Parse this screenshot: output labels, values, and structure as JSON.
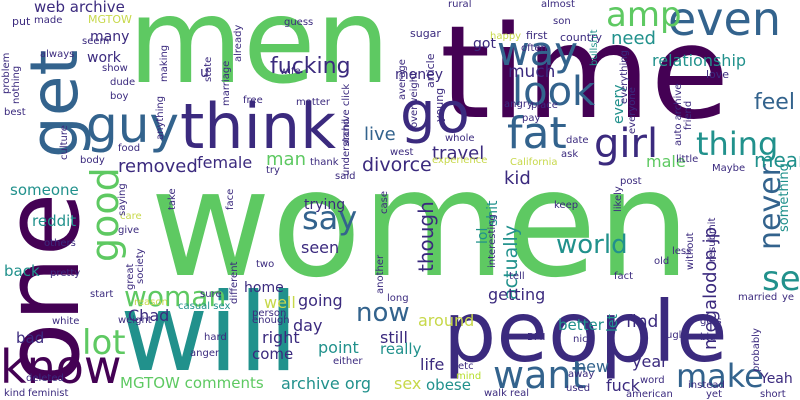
{
  "palette": {
    "dark_purple": "#440154",
    "indigo": "#3b2a7e",
    "blue": "#33638d",
    "teal": "#21918c",
    "green": "#5ec962",
    "yellow_green": "#b5de2b",
    "yellow": "#c7d84a"
  },
  "words": [
    {
      "text": "women",
      "color": "#5ec962"
    },
    {
      "text": "time",
      "color": "#440154"
    },
    {
      "text": "men",
      "color": "#5ec962"
    },
    {
      "text": "one",
      "color": "#440154"
    },
    {
      "text": "will",
      "color": "#21918c"
    },
    {
      "text": "people",
      "color": "#3b2a7e"
    },
    {
      "text": "think",
      "color": "#3b2a7e"
    },
    {
      "text": "get",
      "color": "#33638d"
    },
    {
      "text": "guy",
      "color": "#33638d"
    },
    {
      "text": "go",
      "color": "#3b2a7e"
    },
    {
      "text": "know",
      "color": "#440154"
    },
    {
      "text": "good",
      "color": "#5ec962"
    },
    {
      "text": "even",
      "color": "#33638d"
    },
    {
      "text": "amp",
      "color": "#5ec962"
    },
    {
      "text": "way",
      "color": "#33638d"
    },
    {
      "text": "look",
      "color": "#33638d"
    },
    {
      "text": "fat",
      "color": "#33638d"
    },
    {
      "text": "girl",
      "color": "#3b2a7e"
    },
    {
      "text": "thing",
      "color": "#21918c"
    },
    {
      "text": "see",
      "color": "#21918c"
    },
    {
      "text": "want",
      "color": "#33638d"
    },
    {
      "text": "make",
      "color": "#33638d"
    },
    {
      "text": "say",
      "color": "#33638d"
    },
    {
      "text": "never",
      "color": "#33638d"
    },
    {
      "text": "lot",
      "color": "#5ec962"
    },
    {
      "text": "woman",
      "color": "#5ec962"
    },
    {
      "text": "world",
      "color": "#21918c"
    },
    {
      "text": "now",
      "color": "#33638d"
    },
    {
      "text": "fucking",
      "color": "#3b2a7e"
    },
    {
      "text": "relationship",
      "color": "#21918c"
    },
    {
      "text": "need",
      "color": "#21918c"
    },
    {
      "text": "much",
      "color": "#3b2a7e"
    },
    {
      "text": "feel",
      "color": "#33638d"
    },
    {
      "text": "mean",
      "color": "#21918c"
    },
    {
      "text": "though",
      "color": "#3b2a7e"
    },
    {
      "text": "actually",
      "color": "#21918c"
    },
    {
      "text": "megalodon jp",
      "color": "#3b2a7e"
    },
    {
      "text": "removed",
      "color": "#3b2a7e"
    },
    {
      "text": "female",
      "color": "#3b2a7e"
    },
    {
      "text": "man",
      "color": "#5ec962"
    },
    {
      "text": "divorce",
      "color": "#3b2a7e"
    },
    {
      "text": "live",
      "color": "#33638d"
    },
    {
      "text": "travel",
      "color": "#3b2a7e"
    },
    {
      "text": "kid",
      "color": "#3b2a7e"
    },
    {
      "text": "male",
      "color": "#5ec962"
    },
    {
      "text": "going",
      "color": "#3b2a7e"
    },
    {
      "text": "getting",
      "color": "#3b2a7e"
    },
    {
      "text": "around",
      "color": "#c7d84a"
    },
    {
      "text": "better",
      "color": "#21918c"
    },
    {
      "text": "find",
      "color": "#3b2a7e"
    },
    {
      "text": "seen",
      "color": "#3b2a7e"
    },
    {
      "text": "trying",
      "color": "#3b2a7e"
    },
    {
      "text": "day",
      "color": "#3b2a7e"
    },
    {
      "text": "point",
      "color": "#21918c"
    },
    {
      "text": "still",
      "color": "#3b2a7e"
    },
    {
      "text": "really",
      "color": "#21918c"
    },
    {
      "text": "life",
      "color": "#3b2a7e"
    },
    {
      "text": "sex",
      "color": "#c7d84a"
    },
    {
      "text": "obese",
      "color": "#21918c"
    },
    {
      "text": "new",
      "color": "#33638d"
    },
    {
      "text": "year",
      "color": "#3b2a7e"
    },
    {
      "text": "fuck",
      "color": "#3b2a7e"
    },
    {
      "text": "Yeah",
      "color": "#3b2a7e"
    },
    {
      "text": "archive org",
      "color": "#21918c"
    },
    {
      "text": "MGTOW comments",
      "color": "#5ec962"
    },
    {
      "text": "come",
      "color": "#3b2a7e"
    },
    {
      "text": "right",
      "color": "#3b2a7e"
    },
    {
      "text": "home",
      "color": "#3b2a7e"
    },
    {
      "text": "well",
      "color": "#c7d84a"
    },
    {
      "text": "Chad",
      "color": "#3b2a7e"
    },
    {
      "text": "bad",
      "color": "#3b2a7e"
    },
    {
      "text": "back",
      "color": "#21918c"
    },
    {
      "text": "reddit",
      "color": "#21918c"
    },
    {
      "text": "someone",
      "color": "#21918c"
    },
    {
      "text": "web archive",
      "color": "#3b2a7e"
    },
    {
      "text": "work",
      "color": "#3b2a7e"
    },
    {
      "text": "many",
      "color": "#3b2a7e"
    },
    {
      "text": "money",
      "color": "#3b2a7e"
    },
    {
      "text": "got",
      "color": "#3b2a7e"
    },
    {
      "text": "lol",
      "color": "#21918c"
    },
    {
      "text": "shit",
      "color": "#21918c"
    },
    {
      "text": "let",
      "color": "#21918c"
    },
    {
      "text": "every",
      "color": "#21918c"
    },
    {
      "text": "something",
      "color": "#21918c"
    },
    {
      "text": "MGTOW",
      "color": "#c7d84a"
    },
    {
      "text": "put",
      "color": "#3b2a7e"
    },
    {
      "text": "made",
      "color": "#3b2a7e"
    },
    {
      "text": "always",
      "color": "#3b2a7e"
    },
    {
      "text": "guess",
      "color": "#3b2a7e"
    },
    {
      "text": "rural",
      "color": "#3b2a7e"
    },
    {
      "text": "son",
      "color": "#3b2a7e"
    },
    {
      "text": "almost",
      "color": "#3b2a7e"
    },
    {
      "text": "bullshit",
      "color": "#21918c"
    },
    {
      "text": "country",
      "color": "#3b2a7e"
    },
    {
      "text": "first",
      "color": "#3b2a7e"
    },
    {
      "text": "sugar",
      "color": "#3b2a7e"
    },
    {
      "text": "love",
      "color": "#3b2a7e"
    },
    {
      "text": "casual sex",
      "color": "#21918c"
    },
    {
      "text": "person",
      "color": "#3b2a7e"
    },
    {
      "text": "enough",
      "color": "#3b2a7e"
    },
    {
      "text": "long",
      "color": "#3b2a7e"
    },
    {
      "text": "keep",
      "color": "#3b2a7e"
    },
    {
      "text": "post",
      "color": "#3b2a7e"
    },
    {
      "text": "said",
      "color": "#3b2a7e"
    },
    {
      "text": "tell",
      "color": "#3b2a7e"
    },
    {
      "text": "feminist",
      "color": "#3b2a7e"
    },
    {
      "text": "walk real",
      "color": "#3b2a7e"
    },
    {
      "text": "american",
      "color": "#3b2a7e"
    },
    {
      "text": "word",
      "color": "#3b2a7e"
    },
    {
      "text": "short",
      "color": "#3b2a7e"
    },
    {
      "text": "yet",
      "color": "#3b2a7e"
    },
    {
      "text": "big",
      "color": "#3b2a7e"
    },
    {
      "text": "fact",
      "color": "#3b2a7e"
    },
    {
      "text": "deleted",
      "color": "#3b2a7e"
    },
    {
      "text": "white",
      "color": "#3b2a7e"
    },
    {
      "text": "weight",
      "color": "#3b2a7e"
    },
    {
      "text": "hard",
      "color": "#3b2a7e"
    },
    {
      "text": "anger",
      "color": "#3b2a7e"
    },
    {
      "text": "either",
      "color": "#3b2a7e"
    },
    {
      "text": "two",
      "color": "#3b2a7e"
    },
    {
      "text": "sure",
      "color": "#3b2a7e"
    },
    {
      "text": "others",
      "color": "#3b2a7e"
    },
    {
      "text": "pretty",
      "color": "#3b2a7e"
    },
    {
      "text": "start",
      "color": "#3b2a7e"
    },
    {
      "text": "kind",
      "color": "#3b2a7e"
    },
    {
      "text": "face",
      "color": "#3b2a7e"
    },
    {
      "text": "take",
      "color": "#3b2a7e"
    },
    {
      "text": "try",
      "color": "#3b2a7e"
    },
    {
      "text": "thank",
      "color": "#3b2a7e"
    },
    {
      "text": "matter",
      "color": "#3b2a7e"
    },
    {
      "text": "free",
      "color": "#3b2a7e"
    },
    {
      "text": "wife",
      "color": "#3b2a7e"
    },
    {
      "text": "west",
      "color": "#3b2a7e"
    },
    {
      "text": "ask",
      "color": "#3b2a7e"
    },
    {
      "text": "experience",
      "color": "#c7d84a"
    },
    {
      "text": "California",
      "color": "#c7d84a"
    },
    {
      "text": "whole",
      "color": "#3b2a7e"
    },
    {
      "text": "place",
      "color": "#3b2a7e"
    },
    {
      "text": "date",
      "color": "#3b2a7e"
    },
    {
      "text": "pay",
      "color": "#3b2a7e"
    },
    {
      "text": "little",
      "color": "#3b2a7e"
    },
    {
      "text": "Maybe",
      "color": "#3b2a7e"
    },
    {
      "text": "likely",
      "color": "#3b2a7e"
    },
    {
      "text": "old",
      "color": "#3b2a7e"
    },
    {
      "text": "less",
      "color": "#3b2a7e"
    },
    {
      "text": "without",
      "color": "#3b2a7e"
    },
    {
      "text": "resubmit",
      "color": "#3b2a7e"
    },
    {
      "text": "married",
      "color": "#3b2a7e"
    },
    {
      "text": "gets",
      "color": "#3b2a7e"
    },
    {
      "text": "ugly",
      "color": "#3b2a7e"
    },
    {
      "text": "nice",
      "color": "#3b2a7e"
    },
    {
      "text": "away",
      "color": "#3b2a7e"
    },
    {
      "text": "etc",
      "color": "#3b2a7e"
    },
    {
      "text": "BMI",
      "color": "#3b2a7e"
    },
    {
      "text": "used",
      "color": "#3b2a7e"
    },
    {
      "text": "instead",
      "color": "#3b2a7e"
    },
    {
      "text": "probably",
      "color": "#3b2a7e"
    },
    {
      "text": "ye",
      "color": "#3b2a7e"
    },
    {
      "text": "mind",
      "color": "#b5de2b"
    },
    {
      "text": "different",
      "color": "#3b2a7e"
    },
    {
      "text": "great",
      "color": "#3b2a7e"
    },
    {
      "text": "give",
      "color": "#3b2a7e"
    },
    {
      "text": "care",
      "color": "#c7d84a"
    },
    {
      "text": "saying",
      "color": "#3b2a7e"
    },
    {
      "text": "food",
      "color": "#3b2a7e"
    },
    {
      "text": "body",
      "color": "#3b2a7e"
    },
    {
      "text": "culture",
      "color": "#3b2a7e"
    },
    {
      "text": "best",
      "color": "#3b2a7e"
    },
    {
      "text": "nothing",
      "color": "#3b2a7e"
    },
    {
      "text": "problem",
      "color": "#3b2a7e"
    },
    {
      "text": "seem",
      "color": "#3b2a7e"
    },
    {
      "text": "dude",
      "color": "#3b2a7e"
    },
    {
      "text": "boy",
      "color": "#3b2a7e"
    },
    {
      "text": "show",
      "color": "#3b2a7e"
    },
    {
      "text": "anything",
      "color": "#3b2a7e"
    },
    {
      "text": "making",
      "color": "#3b2a7e"
    },
    {
      "text": "u",
      "color": "#3b2a7e"
    },
    {
      "text": "state",
      "color": "#3b2a7e"
    },
    {
      "text": "marriage",
      "color": "#3b2a7e"
    },
    {
      "text": "already",
      "color": "#3b2a7e"
    },
    {
      "text": "archive click",
      "color": "#3b2a7e"
    },
    {
      "text": "understand",
      "color": "#3b2a7e"
    },
    {
      "text": "average",
      "color": "#3b2a7e"
    },
    {
      "text": "overweight",
      "color": "#3b2a7e"
    },
    {
      "text": "article",
      "color": "#3b2a7e"
    },
    {
      "text": "happy",
      "color": "#c7d84a"
    },
    {
      "text": "often",
      "color": "#3b2a7e"
    },
    {
      "text": "young",
      "color": "#3b2a7e"
    },
    {
      "text": "angry",
      "color": "#3b2a7e"
    },
    {
      "text": "everyone",
      "color": "#3b2a7e"
    },
    {
      "text": "everything",
      "color": "#3b2a7e"
    },
    {
      "text": "friend",
      "color": "#3b2a7e"
    },
    {
      "text": "auto archive",
      "color": "#3b2a7e"
    },
    {
      "text": "interesting",
      "color": "#3b2a7e"
    },
    {
      "text": "society",
      "color": "#3b2a7e"
    },
    {
      "text": "reason",
      "color": "#c7d84a"
    },
    {
      "text": "another",
      "color": "#3b2a7e"
    },
    {
      "text": "case",
      "color": "#3b2a7e"
    }
  ]
}
